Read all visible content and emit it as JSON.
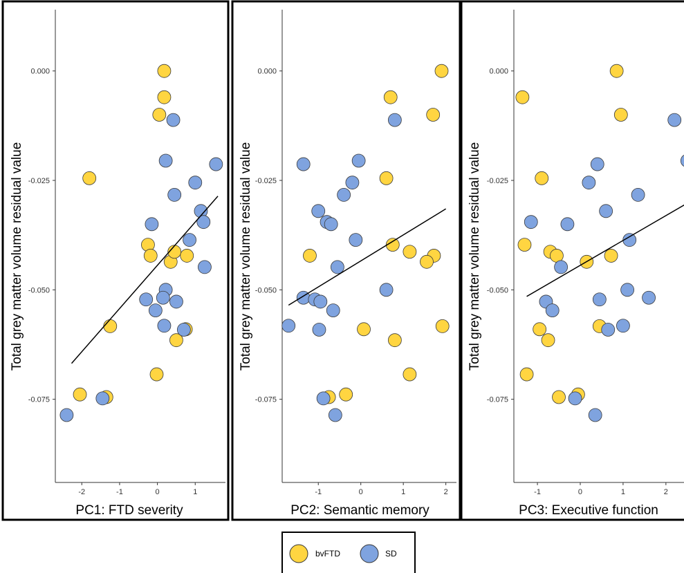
{
  "legend": {
    "items": [
      {
        "label": "bvFTD",
        "color": "#FFD541"
      },
      {
        "label": "SD",
        "color": "#7FA3DF"
      }
    ]
  },
  "chart_data": [
    {
      "type": "scatter",
      "title": "",
      "xlabel": "PC1: FTD severity",
      "ylabel": "Total grey matter volume residual value",
      "xlim": [
        -2.7,
        1.8
      ],
      "ylim": [
        -0.094,
        0.014
      ],
      "x_ticks": [
        -2,
        -1,
        0,
        1
      ],
      "x_tick_labels": [
        "-2",
        "-1",
        "0",
        "1"
      ],
      "y_ticks": [
        0.0,
        -0.025,
        -0.05,
        -0.075
      ],
      "y_tick_labels": [
        "0.000",
        "-0.025",
        "-0.050",
        "-0.075"
      ],
      "grid": false,
      "fit_line": {
        "x": [
          -2.27,
          1.6
        ],
        "y": [
          -0.0668,
          -0.0286
        ]
      },
      "series": [
        {
          "name": "bvFTD",
          "color": "#FFD541",
          "points": [
            [
              0.18,
              0.0
            ],
            [
              0.18,
              -0.006
            ],
            [
              0.05,
              -0.01
            ],
            [
              -1.8,
              -0.0245
            ],
            [
              -0.25,
              -0.0397
            ],
            [
              -0.18,
              -0.0422
            ],
            [
              0.35,
              -0.0436
            ],
            [
              0.45,
              -0.0413
            ],
            [
              0.78,
              -0.0422
            ],
            [
              -1.25,
              -0.0583
            ],
            [
              0.75,
              -0.059
            ],
            [
              0.5,
              -0.0615
            ],
            [
              -0.02,
              -0.0693
            ],
            [
              -2.05,
              -0.0739
            ],
            [
              -1.35,
              -0.0745
            ]
          ]
        },
        {
          "name": "SD",
          "color": "#7FA3DF",
          "points": [
            [
              0.42,
              -0.0112
            ],
            [
              0.22,
              -0.0205
            ],
            [
              1.55,
              -0.0213
            ],
            [
              1.0,
              -0.0255
            ],
            [
              0.45,
              -0.0283
            ],
            [
              1.15,
              -0.032
            ],
            [
              1.22,
              -0.0345
            ],
            [
              -0.15,
              -0.035
            ],
            [
              0.85,
              -0.0386
            ],
            [
              1.25,
              -0.0448
            ],
            [
              0.22,
              -0.05
            ],
            [
              0.15,
              -0.0518
            ],
            [
              -0.3,
              -0.0522
            ],
            [
              0.5,
              -0.0527
            ],
            [
              -0.05,
              -0.0547
            ],
            [
              0.18,
              -0.0582
            ],
            [
              0.7,
              -0.0591
            ],
            [
              -1.45,
              -0.0748
            ],
            [
              -2.4,
              -0.0786
            ]
          ]
        }
      ]
    },
    {
      "type": "scatter",
      "title": "",
      "xlabel": "PC2: Semantic memory",
      "ylabel": "Total grey matter volume residual value",
      "xlim": [
        -1.85,
        2.25
      ],
      "ylim": [
        -0.094,
        0.014
      ],
      "x_ticks": [
        -1,
        0,
        1,
        2
      ],
      "x_tick_labels": [
        "-1",
        "0",
        "1",
        "2"
      ],
      "y_ticks": [
        0.0,
        -0.025,
        -0.05,
        -0.075
      ],
      "y_tick_labels": [
        "0.000",
        "-0.025",
        "-0.050",
        "-0.075"
      ],
      "grid": false,
      "fit_line": {
        "x": [
          -1.7,
          2.0
        ],
        "y": [
          -0.0535,
          -0.0315
        ]
      },
      "series": [
        {
          "name": "bvFTD",
          "color": "#FFD541",
          "points": [
            [
              1.9,
              0.0
            ],
            [
              0.7,
              -0.006
            ],
            [
              1.7,
              -0.01
            ],
            [
              0.6,
              -0.0245
            ],
            [
              0.75,
              -0.0397
            ],
            [
              -1.2,
              -0.0422
            ],
            [
              1.15,
              -0.0413
            ],
            [
              1.72,
              -0.0422
            ],
            [
              1.55,
              -0.0436
            ],
            [
              1.92,
              -0.0583
            ],
            [
              0.07,
              -0.059
            ],
            [
              0.8,
              -0.0615
            ],
            [
              1.15,
              -0.0693
            ],
            [
              -0.35,
              -0.0739
            ],
            [
              -0.75,
              -0.0745
            ]
          ]
        },
        {
          "name": "SD",
          "color": "#7FA3DF",
          "points": [
            [
              0.8,
              -0.0112
            ],
            [
              -0.05,
              -0.0205
            ],
            [
              -1.35,
              -0.0213
            ],
            [
              -0.2,
              -0.0255
            ],
            [
              -0.4,
              -0.0283
            ],
            [
              -1.0,
              -0.032
            ],
            [
              -0.8,
              -0.0345
            ],
            [
              -0.7,
              -0.035
            ],
            [
              -0.12,
              -0.0386
            ],
            [
              -0.55,
              -0.0448
            ],
            [
              0.6,
              -0.05
            ],
            [
              -1.35,
              -0.0518
            ],
            [
              -1.08,
              -0.0522
            ],
            [
              -0.95,
              -0.0527
            ],
            [
              -0.65,
              -0.0547
            ],
            [
              -1.7,
              -0.0582
            ],
            [
              -0.98,
              -0.0591
            ],
            [
              -0.88,
              -0.0748
            ],
            [
              -0.6,
              -0.0786
            ]
          ]
        }
      ]
    },
    {
      "type": "scatter",
      "title": "",
      "xlabel": "PC3: Executive function",
      "ylabel": "Total grey matter volume residual value",
      "xlim": [
        -1.55,
        2.6
      ],
      "ylim": [
        -0.094,
        0.014
      ],
      "x_ticks": [
        -1,
        0,
        1,
        2
      ],
      "x_tick_labels": [
        "-1",
        "0",
        "1",
        "2"
      ],
      "y_ticks": [
        0.0,
        -0.025,
        -0.05,
        -0.075
      ],
      "y_tick_labels": [
        "0.000",
        "-0.025",
        "-0.050",
        "-0.075"
      ],
      "grid": false,
      "fit_line": {
        "x": [
          -1.25,
          2.5
        ],
        "y": [
          -0.0515,
          -0.0302
        ]
      },
      "series": [
        {
          "name": "bvFTD",
          "color": "#FFD541",
          "points": [
            [
              0.85,
              0.0
            ],
            [
              -1.35,
              -0.006
            ],
            [
              0.95,
              -0.01
            ],
            [
              -0.9,
              -0.0245
            ],
            [
              -1.3,
              -0.0397
            ],
            [
              -0.7,
              -0.0413
            ],
            [
              -0.55,
              -0.0422
            ],
            [
              0.15,
              -0.0436
            ],
            [
              0.72,
              -0.0422
            ],
            [
              0.45,
              -0.0583
            ],
            [
              -0.95,
              -0.059
            ],
            [
              -0.75,
              -0.0615
            ],
            [
              -1.25,
              -0.0693
            ],
            [
              -0.05,
              -0.0739
            ],
            [
              -0.5,
              -0.0745
            ]
          ]
        },
        {
          "name": "SD",
          "color": "#7FA3DF",
          "points": [
            [
              2.2,
              -0.0112
            ],
            [
              2.5,
              -0.0205
            ],
            [
              0.4,
              -0.0213
            ],
            [
              0.2,
              -0.0255
            ],
            [
              1.35,
              -0.0283
            ],
            [
              0.6,
              -0.032
            ],
            [
              -1.15,
              -0.0345
            ],
            [
              -0.3,
              -0.035
            ],
            [
              1.15,
              -0.0386
            ],
            [
              -0.45,
              -0.0448
            ],
            [
              1.1,
              -0.05
            ],
            [
              1.6,
              -0.0518
            ],
            [
              0.45,
              -0.0522
            ],
            [
              -0.8,
              -0.0527
            ],
            [
              -0.65,
              -0.0547
            ],
            [
              1.0,
              -0.0582
            ],
            [
              0.65,
              -0.0591
            ],
            [
              -0.12,
              -0.0748
            ],
            [
              0.35,
              -0.0786
            ]
          ]
        }
      ]
    }
  ]
}
